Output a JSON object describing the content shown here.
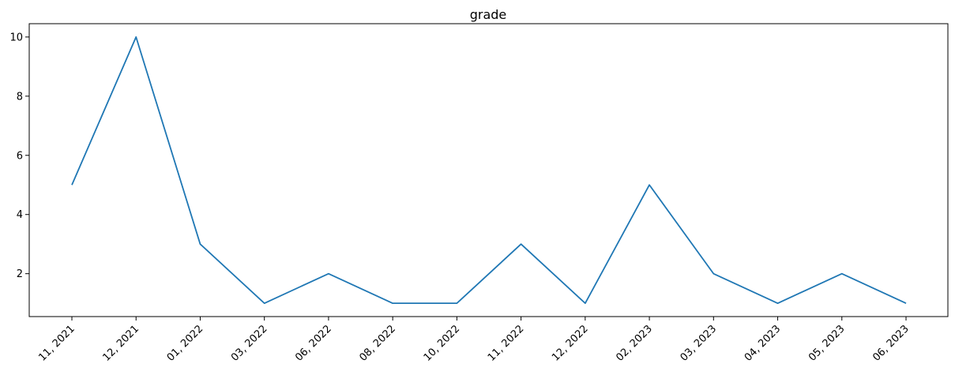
{
  "chart_data": {
    "type": "line",
    "title": "grade",
    "xlabel": "",
    "ylabel": "",
    "categories": [
      "11, 2021",
      "12, 2021",
      "01, 2022",
      "03, 2022",
      "06, 2022",
      "08, 2022",
      "10, 2022",
      "11, 2022",
      "12, 2022",
      "02, 2023",
      "03, 2023",
      "04, 2023",
      "05, 2023",
      "06, 2023"
    ],
    "series": [
      {
        "values": [
          5,
          10,
          3,
          1,
          2,
          1,
          1,
          3,
          1,
          5,
          2,
          1,
          2,
          1
        ],
        "color": "#1f77b4"
      }
    ],
    "yticks": [
      2,
      4,
      6,
      8,
      10
    ],
    "ylim": [
      0.55,
      10.45
    ],
    "grid": false,
    "legend": "none"
  }
}
